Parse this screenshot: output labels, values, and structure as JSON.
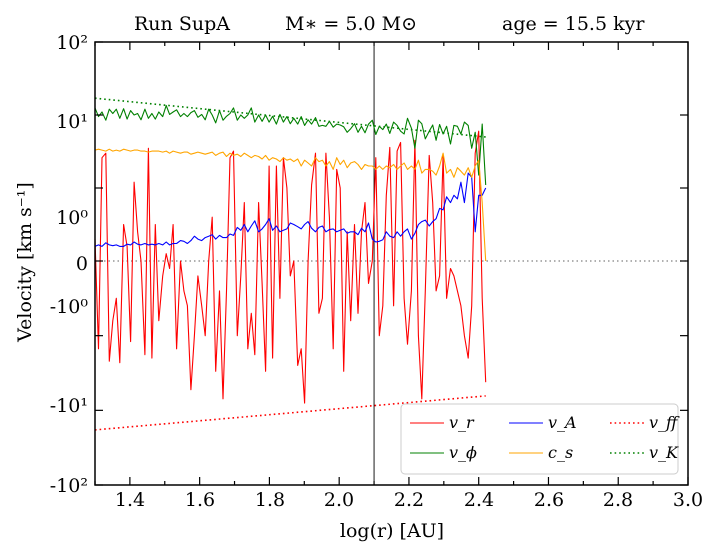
{
  "chart_data": {
    "type": "line",
    "title": {
      "run": "Run SupA",
      "mass": "M∗ = 5.0 M⊙",
      "age": "age = 15.5 kyr"
    },
    "xlabel": "log(r) [AU]",
    "ylabel": "Velocity [km s⁻¹]",
    "xlim": [
      1.3,
      3.0
    ],
    "yscale": "symlog",
    "linthresh": 1,
    "ylim": [
      -100,
      100
    ],
    "x_ticks": [
      "1.4",
      "1.6",
      "1.8",
      "2.0",
      "2.2",
      "2.4",
      "2.6",
      "2.8",
      "3.0"
    ],
    "y_ticks": [
      "10²",
      "10¹",
      "10⁰",
      "0",
      "-10⁰",
      "-10¹",
      "-10²"
    ],
    "vertical_line_x": 2.1,
    "zero_line": true,
    "legend": {
      "location": "lower-right",
      "entries": [
        {
          "label": "v_r",
          "color": "#ff0000",
          "style": "solid"
        },
        {
          "label": "v_ϕ",
          "color": "#008000",
          "style": "solid"
        },
        {
          "label": "v_A",
          "color": "#0000ff",
          "style": "solid"
        },
        {
          "label": "c_s",
          "color": "#ffa500",
          "style": "solid"
        },
        {
          "label": "v_ff",
          "color": "#ff0000",
          "style": "dotted"
        },
        {
          "label": "v_K",
          "color": "#008000",
          "style": "dotted"
        }
      ]
    },
    "series": [
      {
        "name": "v_r",
        "color": "#ff0000",
        "style": "solid",
        "x": [
          1.3,
          1.31,
          1.32,
          1.331,
          1.341,
          1.351,
          1.361,
          1.371,
          1.382,
          1.392,
          1.402,
          1.412,
          1.422,
          1.432,
          1.443,
          1.453,
          1.463,
          1.473,
          1.483,
          1.494,
          1.504,
          1.514,
          1.524,
          1.534,
          1.545,
          1.555,
          1.565,
          1.575,
          1.585,
          1.595,
          1.606,
          1.616,
          1.626,
          1.636,
          1.646,
          1.657,
          1.667,
          1.677,
          1.687,
          1.697,
          1.708,
          1.718,
          1.728,
          1.738,
          1.748,
          1.758,
          1.769,
          1.779,
          1.789,
          1.799,
          1.809,
          1.82,
          1.83,
          1.84,
          1.85,
          1.86,
          1.87,
          1.881,
          1.891,
          1.901,
          1.911,
          1.921,
          1.932,
          1.942,
          1.952,
          1.962,
          1.972,
          1.983,
          1.993,
          2.003,
          2.013,
          2.023,
          2.033,
          2.044,
          2.054,
          2.064,
          2.074,
          2.084,
          2.095,
          2.105,
          2.115,
          2.125,
          2.135,
          2.145,
          2.156,
          2.166,
          2.176,
          2.186,
          2.196,
          2.207,
          2.217,
          2.227,
          2.237,
          2.247,
          2.258,
          2.268,
          2.278,
          2.288,
          2.298,
          2.308,
          2.319,
          2.329,
          2.339,
          2.349,
          2.359,
          2.37,
          2.38,
          2.39,
          2.4,
          2.41,
          2.42
        ],
        "y": [
          0.3,
          -1.5,
          2.6,
          3.0,
          -2.2,
          -0.8,
          -0.5,
          -2.3,
          0.5,
          0.2,
          -1.2,
          1.2,
          0.4,
          0.0,
          -1.8,
          3.5,
          -2.0,
          0.5,
          -0.8,
          -0.2,
          0.1,
          -0.1,
          0.5,
          -1.5,
          0.0,
          -0.4,
          -0.6,
          -5.3,
          -1.0,
          -0.2,
          -0.6,
          -1.0,
          0.0,
          0.6,
          -3.0,
          -0.4,
          -7.0,
          -0.4,
          2.6,
          3.2,
          -1.0,
          -0.2,
          0.8,
          -1.5,
          -0.7,
          -1.8,
          0.8,
          -0.3,
          -3.0,
          2.0,
          -2.0,
          2.0,
          -0.5,
          2.6,
          1.0,
          -0.2,
          0.0,
          -2.5,
          -1.5,
          -8.0,
          0.0,
          1.1,
          3.0,
          -0.7,
          -0.5,
          3.0,
          0.6,
          -1.5,
          1.8,
          1.0,
          -3.0,
          0.4,
          -0.8,
          0.5,
          -0.7,
          0.4,
          0.8,
          -0.3,
          0.0,
          2.6,
          -1.0,
          -0.6,
          0.9,
          3.6,
          -0.6,
          3.2,
          4.2,
          -0.5,
          -1.3,
          -0.4,
          4.5,
          -1.0,
          -7.0,
          -0.4,
          2.8,
          0.8,
          -0.4,
          -0.2,
          2.8,
          -0.5,
          -0.1,
          -0.2,
          -0.4,
          -0.6,
          -1.0,
          -2.0,
          -0.6,
          3.0,
          6.0,
          -0.5,
          -4.2
        ]
      },
      {
        "name": "v_ϕ",
        "color": "#008000",
        "style": "solid",
        "x": [
          1.3,
          1.31,
          1.32,
          1.331,
          1.341,
          1.351,
          1.361,
          1.371,
          1.382,
          1.392,
          1.402,
          1.412,
          1.422,
          1.432,
          1.443,
          1.453,
          1.463,
          1.473,
          1.483,
          1.494,
          1.504,
          1.514,
          1.524,
          1.534,
          1.545,
          1.555,
          1.565,
          1.575,
          1.585,
          1.595,
          1.606,
          1.616,
          1.626,
          1.636,
          1.646,
          1.657,
          1.667,
          1.677,
          1.687,
          1.697,
          1.708,
          1.718,
          1.728,
          1.738,
          1.748,
          1.758,
          1.769,
          1.779,
          1.789,
          1.799,
          1.809,
          1.82,
          1.83,
          1.84,
          1.85,
          1.86,
          1.87,
          1.881,
          1.891,
          1.901,
          1.911,
          1.921,
          1.932,
          1.942,
          1.952,
          1.962,
          1.972,
          1.983,
          1.993,
          2.003,
          2.013,
          2.023,
          2.033,
          2.044,
          2.054,
          2.064,
          2.074,
          2.084,
          2.095,
          2.105,
          2.115,
          2.125,
          2.135,
          2.145,
          2.156,
          2.166,
          2.176,
          2.186,
          2.196,
          2.207,
          2.217,
          2.227,
          2.237,
          2.247,
          2.258,
          2.268,
          2.278,
          2.288,
          2.298,
          2.308,
          2.319,
          2.329,
          2.339,
          2.349,
          2.359,
          2.37,
          2.38,
          2.39,
          2.4,
          2.41,
          2.42
        ],
        "y": [
          12.5,
          9.5,
          11.0,
          8.5,
          12.0,
          10.5,
          12.0,
          9.0,
          12.2,
          8.8,
          11.5,
          10.0,
          10.5,
          8.6,
          12.0,
          9.0,
          10.5,
          8.8,
          11.0,
          9.5,
          13.5,
          10.2,
          11.0,
          11.8,
          9.5,
          10.5,
          9.5,
          10.8,
          11.5,
          9.3,
          10.2,
          8.6,
          12.0,
          10.0,
          7.8,
          11.5,
          8.5,
          9.6,
          10.5,
          12.5,
          8.5,
          10.0,
          9.0,
          10.0,
          12.5,
          8.0,
          10.0,
          8.2,
          10.0,
          8.0,
          9.6,
          7.5,
          10.2,
          8.0,
          9.5,
          7.6,
          9.0,
          7.5,
          9.5,
          7.2,
          8.6,
          7.5,
          9.2,
          7.0,
          7.2,
          7.0,
          8.2,
          6.8,
          7.5,
          7.3,
          6.9,
          5.8,
          6.5,
          7.6,
          5.8,
          7.0,
          5.7,
          7.5,
          8.5,
          5.4,
          7.0,
          6.3,
          7.5,
          5.6,
          8.0,
          7.2,
          6.0,
          5.5,
          9.0,
          6.6,
          3.5,
          8.5,
          7.6,
          4.7,
          6.0,
          7.3,
          4.5,
          7.4,
          5.5,
          7.0,
          4.0,
          7.2,
          7.0,
          5.5,
          8.0,
          7.2,
          3.5,
          5.8,
          1.5,
          7.5,
          1.1
        ]
      },
      {
        "name": "v_A",
        "color": "#0000ff",
        "style": "solid",
        "x": [
          1.3,
          1.31,
          1.32,
          1.331,
          1.341,
          1.351,
          1.361,
          1.371,
          1.382,
          1.392,
          1.402,
          1.412,
          1.422,
          1.432,
          1.443,
          1.453,
          1.463,
          1.473,
          1.483,
          1.494,
          1.504,
          1.514,
          1.524,
          1.534,
          1.545,
          1.555,
          1.565,
          1.575,
          1.585,
          1.595,
          1.606,
          1.616,
          1.626,
          1.636,
          1.646,
          1.657,
          1.667,
          1.677,
          1.687,
          1.697,
          1.708,
          1.718,
          1.728,
          1.738,
          1.748,
          1.758,
          1.769,
          1.779,
          1.789,
          1.799,
          1.809,
          1.82,
          1.83,
          1.84,
          1.85,
          1.86,
          1.87,
          1.881,
          1.891,
          1.901,
          1.911,
          1.921,
          1.932,
          1.942,
          1.952,
          1.962,
          1.972,
          1.983,
          1.993,
          2.003,
          2.013,
          2.023,
          2.033,
          2.044,
          2.054,
          2.064,
          2.074,
          2.084,
          2.095,
          2.105,
          2.115,
          2.125,
          2.135,
          2.145,
          2.156,
          2.166,
          2.176,
          2.186,
          2.196,
          2.207,
          2.217,
          2.227,
          2.237,
          2.247,
          2.258,
          2.268,
          2.278,
          2.288,
          2.298,
          2.308,
          2.319,
          2.329,
          2.339,
          2.349,
          2.359,
          2.37,
          2.38,
          2.39,
          2.4,
          2.41,
          2.42
        ],
        "y": [
          0.2,
          0.22,
          0.2,
          0.25,
          0.22,
          0.21,
          0.22,
          0.2,
          0.2,
          0.23,
          0.22,
          0.26,
          0.23,
          0.22,
          0.24,
          0.22,
          0.23,
          0.22,
          0.24,
          0.22,
          0.26,
          0.22,
          0.24,
          0.24,
          0.28,
          0.27,
          0.24,
          0.28,
          0.34,
          0.3,
          0.28,
          0.32,
          0.34,
          0.36,
          0.3,
          0.35,
          0.32,
          0.32,
          0.37,
          0.35,
          0.46,
          0.42,
          0.5,
          0.4,
          0.48,
          0.55,
          0.4,
          0.44,
          0.5,
          0.58,
          0.42,
          0.48,
          0.4,
          0.42,
          0.44,
          0.52,
          0.5,
          0.47,
          0.44,
          0.5,
          0.54,
          0.45,
          0.4,
          0.46,
          0.48,
          0.4,
          0.43,
          0.44,
          0.4,
          0.42,
          0.44,
          0.38,
          0.4,
          0.4,
          0.36,
          0.45,
          0.4,
          0.52,
          0.3,
          0.26,
          0.27,
          0.29,
          0.4,
          0.34,
          0.32,
          0.4,
          0.34,
          0.4,
          0.44,
          0.3,
          0.38,
          0.5,
          0.54,
          0.56,
          0.48,
          0.54,
          0.58,
          0.72,
          0.7,
          0.88,
          0.8,
          0.9,
          0.85,
          1.2,
          0.8,
          1.6,
          1.4,
          0.4,
          0.9,
          0.9,
          1.0
        ]
      },
      {
        "name": "c_s",
        "color": "#ffa500",
        "style": "solid",
        "x": [
          1.3,
          1.31,
          1.32,
          1.331,
          1.341,
          1.351,
          1.361,
          1.371,
          1.382,
          1.392,
          1.402,
          1.412,
          1.422,
          1.432,
          1.443,
          1.453,
          1.463,
          1.473,
          1.483,
          1.494,
          1.504,
          1.514,
          1.524,
          1.534,
          1.545,
          1.555,
          1.565,
          1.575,
          1.585,
          1.595,
          1.606,
          1.616,
          1.626,
          1.636,
          1.646,
          1.657,
          1.667,
          1.677,
          1.687,
          1.697,
          1.708,
          1.718,
          1.728,
          1.738,
          1.748,
          1.758,
          1.769,
          1.779,
          1.789,
          1.799,
          1.809,
          1.82,
          1.83,
          1.84,
          1.85,
          1.86,
          1.87,
          1.881,
          1.891,
          1.901,
          1.911,
          1.921,
          1.932,
          1.942,
          1.952,
          1.962,
          1.972,
          1.983,
          1.993,
          2.003,
          2.013,
          2.023,
          2.033,
          2.044,
          2.054,
          2.064,
          2.074,
          2.084,
          2.095,
          2.105,
          2.115,
          2.125,
          2.135,
          2.145,
          2.156,
          2.166,
          2.176,
          2.186,
          2.196,
          2.207,
          2.217,
          2.227,
          2.237,
          2.247,
          2.258,
          2.268,
          2.278,
          2.288,
          2.298,
          2.308,
          2.319,
          2.329,
          2.339,
          2.349,
          2.359,
          2.37,
          2.38,
          2.39,
          2.4,
          2.41,
          2.42
        ],
        "y": [
          3.3,
          3.4,
          3.3,
          3.2,
          3.4,
          3.2,
          3.3,
          3.2,
          3.4,
          3.3,
          3.2,
          3.3,
          3.3,
          3.2,
          3.2,
          3.1,
          3.2,
          3.2,
          3.2,
          3.1,
          3.2,
          3.0,
          3.2,
          3.1,
          3.0,
          3.1,
          3.1,
          2.9,
          3.0,
          3.1,
          3.0,
          2.9,
          3.0,
          3.1,
          2.8,
          3.0,
          3.1,
          2.7,
          3.0,
          2.8,
          2.9,
          2.7,
          3.0,
          2.8,
          2.6,
          2.8,
          2.7,
          2.5,
          2.8,
          2.4,
          2.6,
          2.5,
          2.3,
          2.6,
          2.4,
          2.5,
          2.3,
          2.5,
          2.0,
          2.4,
          2.2,
          2.0,
          2.6,
          2.3,
          2.4,
          2.0,
          2.3,
          1.8,
          2.6,
          2.1,
          2.4,
          1.9,
          2.2,
          2.3,
          2.1,
          1.8,
          2.1,
          2.0,
          2.0,
          1.8,
          2.0,
          1.8,
          2.0,
          1.9,
          2.1,
          1.8,
          2.0,
          2.2,
          1.8,
          2.0,
          1.8,
          2.4,
          1.6,
          1.8,
          1.8,
          1.7,
          1.5,
          2.0,
          3.0,
          1.6,
          1.8,
          1.4,
          1.9,
          1.7,
          1.5,
          1.9,
          1.4,
          2.0,
          2.4,
          0.8,
          0.0
        ]
      },
      {
        "name": "v_ff",
        "color": "#ff0000",
        "style": "dotted",
        "x": [
          1.3,
          2.42
        ],
        "y": [
          -18.3,
          -6.4
        ]
      },
      {
        "name": "v_K",
        "color": "#008000",
        "style": "dotted",
        "x": [
          1.3,
          2.42
        ],
        "y": [
          17.0,
          5.0
        ]
      }
    ]
  }
}
